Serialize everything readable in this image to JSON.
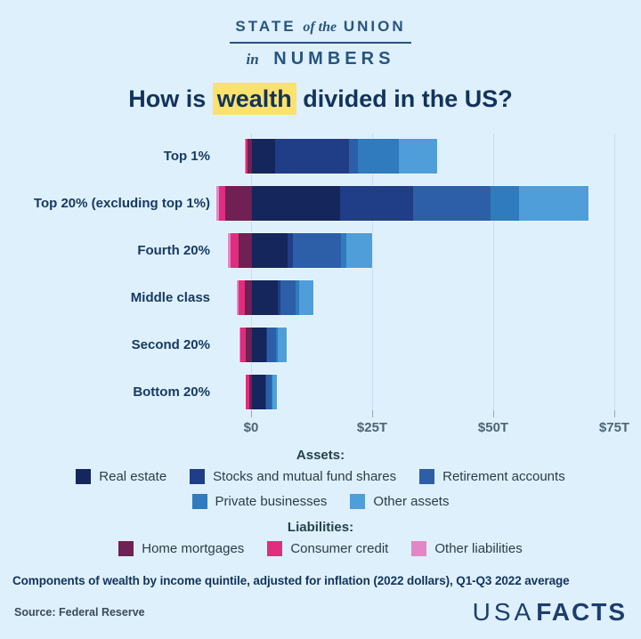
{
  "header": {
    "logo_word1": "STATE",
    "logo_word2": "of the",
    "logo_word3": "UNION",
    "logo_word4": "in",
    "logo_word5": "NUMBERS"
  },
  "title": {
    "pre": "How is ",
    "highlight": "wealth",
    "post": " divided in the US?"
  },
  "chart_data": {
    "type": "bar",
    "orientation": "horizontal",
    "stacked": true,
    "title": "How is wealth divided in the US?",
    "unit": "trillions of 2022 dollars",
    "xlim": [
      -10,
      80
    ],
    "x_tick_values": [
      0,
      25,
      50,
      75
    ],
    "x_tick_labels": [
      "$0",
      "$25T",
      "$50T",
      "$75T"
    ],
    "grid": true,
    "categories": [
      "Top 1%",
      "Top 20% (excluding top 1%)",
      "Fourth 20%",
      "Middle class",
      "Second 20%",
      "Bottom 20%"
    ],
    "series": [
      {
        "name": "Real estate",
        "group": "assets",
        "color": "#14265b",
        "values": [
          4.8,
          18.2,
          7.4,
          5.3,
          2.9,
          2.8
        ]
      },
      {
        "name": "Stocks and mutual fund shares",
        "group": "assets",
        "color": "#1f3e87",
        "values": [
          15.3,
          15.1,
          1.1,
          0.5,
          0.3,
          0.2
        ]
      },
      {
        "name": "Retirement accounts",
        "group": "assets",
        "color": "#2c5fa7",
        "values": [
          1.7,
          16.0,
          9.9,
          3.3,
          1.8,
          1.0
        ]
      },
      {
        "name": "Private businesses",
        "group": "assets",
        "color": "#2f7bbd",
        "values": [
          8.6,
          5.9,
          1.1,
          0.7,
          0.3,
          0.2
        ]
      },
      {
        "name": "Other assets",
        "group": "assets",
        "color": "#4f9ed9",
        "values": [
          7.9,
          14.3,
          5.3,
          2.9,
          1.9,
          1.0
        ]
      },
      {
        "name": "Home mortgages",
        "group": "liabilities",
        "color": "#702052",
        "values": [
          1.0,
          5.5,
          2.8,
          1.5,
          1.3,
          0.5
        ]
      },
      {
        "name": "Consumer credit",
        "group": "liabilities",
        "color": "#e02d7d",
        "values": [
          0.2,
          1.3,
          1.7,
          1.3,
          1.1,
          0.7
        ]
      },
      {
        "name": "Other liabilities",
        "group": "liabilities",
        "color": "#e287c6",
        "values": [
          0.2,
          0.5,
          0.5,
          0.3,
          0.2,
          0.1
        ]
      }
    ],
    "legend_position": "bottom"
  },
  "legend": {
    "assets_header": "Assets:",
    "liabilities_header": "Liabilities:"
  },
  "footer": {
    "note": "Components of wealth by income quintile, adjusted for inflation (2022 dollars), Q1-Q3 2022 average",
    "source": "Source: Federal Reserve",
    "brand_usa": "USA",
    "brand_facts": "FACTS"
  }
}
